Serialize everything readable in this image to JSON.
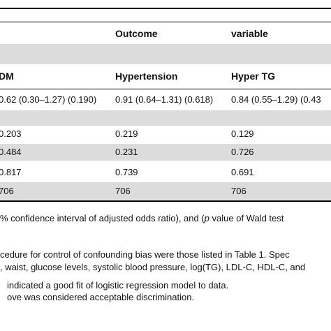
{
  "header": {
    "col2": "Outcome",
    "col3": "variable"
  },
  "subheader": {
    "col1": "DM",
    "col2": "Hypertension",
    "col3": "Hyper TG"
  },
  "rows": [
    {
      "c1": "0.62 (0.30–1.27) (0.190)",
      "c2": "0.91 (0.64–1.31) (0.618)",
      "c3": "0.84 (0.55–1.29) (0.43"
    },
    {
      "c1": "0.203",
      "c2": "0.219",
      "c3": "0.129"
    },
    {
      "c1": "0.484",
      "c2": "0.231",
      "c3": "0.726"
    },
    {
      "c1": "0.817",
      "c2": "0.739",
      "c3": "0.691"
    },
    {
      "c1": "706",
      "c2": "706",
      "c3": "706"
    }
  ],
  "footnotes": {
    "line1_a": "% confidence interval of adjusted odds ratio), and (",
    "line1_p": "p",
    "line1_b": " value of Wald test",
    "line2": "cedure for control of confounding bias were those listed in Table 1. Spec",
    "line3": ", waist, glucose levels, systolic blood pressure, log(TG), LDL-C, HDL-C, and",
    "line4": "indicated a good fit of logistic regression model to data.",
    "line5": "ove was considered acceptable discrimination."
  }
}
